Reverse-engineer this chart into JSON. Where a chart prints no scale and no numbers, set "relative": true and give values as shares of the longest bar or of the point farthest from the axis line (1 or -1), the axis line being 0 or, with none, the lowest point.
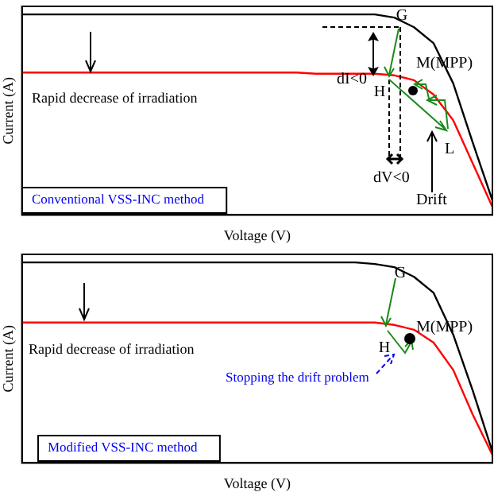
{
  "chart_data": [
    {
      "type": "line",
      "relative": true,
      "xlabel": "Voltage (V)",
      "ylabel": "Current (A)",
      "categories": [
        null,
        null,
        null,
        null,
        null,
        null,
        null,
        null,
        null,
        null,
        null,
        null,
        null,
        null,
        null,
        null,
        null,
        null,
        null,
        null,
        null,
        null,
        null,
        null,
        null
      ],
      "series": [
        {
          "color": "#000000",
          "values": [
            1,
            1,
            1,
            1,
            1,
            1,
            1,
            1,
            1,
            1,
            1,
            1,
            1,
            1,
            1,
            1,
            1,
            1,
            1,
            0.984,
            0.936,
            0.856,
            0.656,
            0.36,
            0.072
          ]
        },
        {
          "color": "#ff0000",
          "values": [
            0.71,
            0.71,
            0.71,
            0.71,
            0.71,
            0.71,
            0.71,
            0.71,
            0.71,
            0.71,
            0.71,
            0.71,
            0.71,
            0.71,
            0.71,
            0.704,
            0.704,
            0.704,
            0.704,
            0.696,
            0.672,
            0.6,
            0.472,
            0.256,
            0.04
          ]
        }
      ],
      "annotations": [
        "G",
        "H",
        "M(MPP)",
        "L",
        "dI<0",
        "dV<0",
        "Drift",
        "Rapid decrease of irradiation",
        "Conventional VSS-INC method"
      ]
    },
    {
      "type": "line",
      "relative": true,
      "xlabel": "Voltage (V)",
      "ylabel": "Current (A)",
      "categories": [
        null,
        null,
        null,
        null,
        null,
        null,
        null,
        null,
        null,
        null,
        null,
        null,
        null,
        null,
        null,
        null,
        null,
        null,
        null,
        null,
        null,
        null,
        null,
        null,
        null
      ],
      "series": [
        {
          "color": "#000000",
          "values": [
            1,
            1,
            1,
            1,
            1,
            1,
            1,
            1,
            1,
            1,
            1,
            1,
            1,
            1,
            1,
            1,
            1,
            1,
            0.992,
            0.976,
            0.928,
            0.848,
            0.64,
            0.36,
            0.056
          ]
        },
        {
          "color": "#ff0000",
          "values": [
            0.7,
            0.7,
            0.7,
            0.7,
            0.7,
            0.7,
            0.7,
            0.7,
            0.7,
            0.7,
            0.7,
            0.7,
            0.7,
            0.7,
            0.7,
            0.7,
            0.7,
            0.7,
            0.7,
            0.688,
            0.664,
            0.6,
            0.464,
            0.24,
            0.04
          ]
        }
      ],
      "annotations": [
        "G",
        "H",
        "M(MPP)",
        "Stopping the drift problem",
        "Rapid decrease of irradiation",
        "Modified VSS-INC method"
      ]
    }
  ]
}
